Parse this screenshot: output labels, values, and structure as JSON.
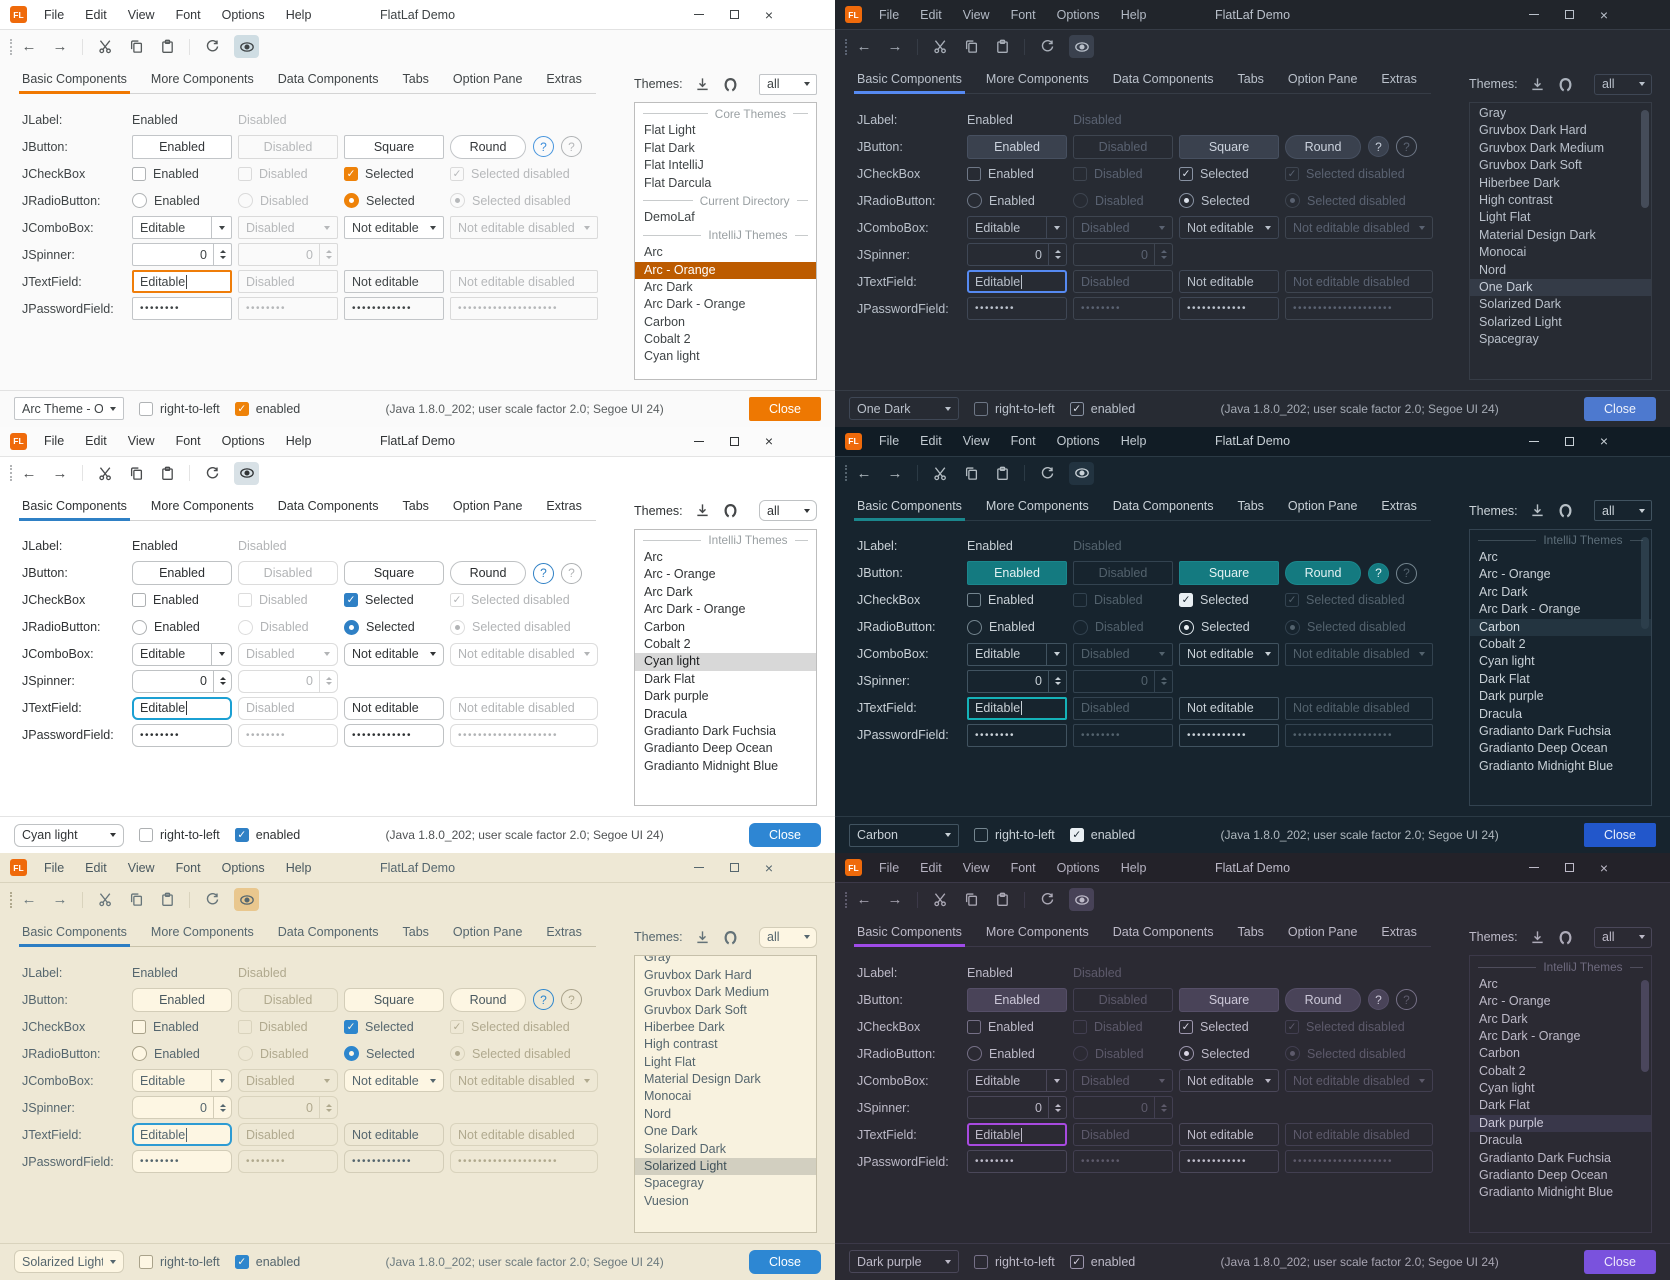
{
  "shared": {
    "titlebar": {
      "menus": [
        "File",
        "Edit",
        "View",
        "Font",
        "Options",
        "Help"
      ],
      "title": "FlatLaf Demo"
    },
    "tabs": [
      "Basic Components",
      "More Components",
      "Data Components",
      "Tabs",
      "Option Pane",
      "Extras"
    ],
    "themes_label": "Themes:",
    "filter_value": "all",
    "form": {
      "rows": [
        "JLabel:",
        "JButton:",
        "JCheckBox",
        "JRadioButton:",
        "JComboBox:",
        "JSpinner:",
        "JTextField:",
        "JPasswordField:"
      ],
      "jlabel": {
        "enabled": "Enabled",
        "disabled": "Disabled"
      },
      "jbutton": {
        "enabled": "Enabled",
        "disabled": "Disabled",
        "square": "Square",
        "round": "Round",
        "help": "?"
      },
      "jcheckbox": {
        "enabled": "Enabled",
        "disabled": "Disabled",
        "selected": "Selected",
        "selected_disabled": "Selected disabled"
      },
      "jradio": {
        "enabled": "Enabled",
        "disabled": "Disabled",
        "selected": "Selected",
        "selected_disabled": "Selected disabled"
      },
      "jcombobox": {
        "editable": "Editable",
        "disabled": "Disabled",
        "not_editable": "Not editable",
        "not_editable_disabled": "Not editable disabled"
      },
      "jspinner": {
        "value": "0"
      },
      "jtextfield": {
        "editable": "Editable",
        "disabled": "Disabled",
        "not_editable": "Not editable",
        "not_editable_disabled": "Not editable disabled"
      },
      "jpassword": {
        "p1": "••••••••",
        "p2": "••••••••",
        "p3": "••••••••••••",
        "p4": "••••••••••••••••••••"
      }
    },
    "bottom": {
      "rtl_label": "right-to-left",
      "enabled_label": "enabled",
      "status": "(Java 1.8.0_202;  user scale factor 2.0; Segoe UI 24)",
      "close_label": "Close"
    }
  },
  "panels": [
    {
      "id": "arc-orange",
      "theme_combo_value": "Arc Theme - O...",
      "scrollbar": false,
      "clip_first": false,
      "list": [
        {
          "sep": "Core Themes"
        },
        {
          "label": "Flat Light"
        },
        {
          "label": "Flat Dark"
        },
        {
          "label": "Flat IntelliJ"
        },
        {
          "label": "Flat Darcula"
        },
        {
          "sep": "Current Directory"
        },
        {
          "label": "DemoLaf"
        },
        {
          "sep": "IntelliJ Themes"
        },
        {
          "label": "Arc"
        },
        {
          "label": "Arc - Orange",
          "selected": true
        },
        {
          "label": "Arc Dark"
        },
        {
          "label": "Arc Dark - Orange"
        },
        {
          "label": "Carbon"
        },
        {
          "label": "Cobalt 2"
        },
        {
          "label": "Cyan light"
        }
      ],
      "colors": {
        "bg": "#fafafa",
        "titlebar": "#ffffff",
        "fg": "#3f4446",
        "menufg": "#333639",
        "muted": "#b6b8ba",
        "line": "#e2e2e2",
        "tabline": "#d4d4d4",
        "ctrl": "#b0b3b5",
        "disctrl": "#dadada",
        "fieldbg": "#ffffff",
        "fieldborder": "#c2c5c8",
        "btnbg": "#ffffff",
        "btnfg": "#333639",
        "btnborder": "#c2c5c8",
        "accent": "#f07800",
        "focus": "#ef7d09",
        "checkbg": "#ee8209",
        "checkborder": "#ee8209",
        "checkfg": "#ffffff",
        "radiobg": "#ee8209",
        "radioborder": "#ee8209",
        "radiodot": "#ffffff",
        "selbg": "#bc5b00",
        "selfg": "#ffffff",
        "listbg": "#ffffff",
        "listborder": "#bdbdbd",
        "sepfg": "#9aa0a3",
        "eyebg": "#cfdde3",
        "closebg": "#ee7802",
        "closefg": "#ffffff",
        "helpbg": "transparent",
        "helpborder": "#4795dd",
        "helpfg": "#3d8edb",
        "thumb": "#d4d4d4",
        "radius": "2px"
      }
    },
    {
      "id": "one-dark",
      "theme_combo_value": "One Dark",
      "scrollbar": true,
      "thumb_top": "2%",
      "thumb_height": "36%",
      "clip_first": false,
      "list": [
        {
          "label": "Gray"
        },
        {
          "label": "Gruvbox Dark Hard"
        },
        {
          "label": "Gruvbox Dark Medium"
        },
        {
          "label": "Gruvbox Dark Soft"
        },
        {
          "label": "Hiberbee Dark"
        },
        {
          "label": "High contrast"
        },
        {
          "label": "Light Flat"
        },
        {
          "label": "Material Design Dark"
        },
        {
          "label": "Monocai"
        },
        {
          "label": "Nord"
        },
        {
          "label": "One Dark",
          "selected": true
        },
        {
          "label": "Solarized Dark"
        },
        {
          "label": "Solarized Light"
        },
        {
          "label": "Spacegray"
        }
      ],
      "colors": {
        "bg": "#272b33",
        "titlebar": "#21252b",
        "fg": "#bac1cb",
        "menufg": "#b3bac5",
        "muted": "#5a6271",
        "line": "#363c46",
        "tabline": "#363c46",
        "ctrl": "#6e7786",
        "disctrl": "#3e4550",
        "fieldbg": "#272b33",
        "fieldborder": "#3f4755",
        "btnbg": "#3a414e",
        "btnfg": "#ccd3de",
        "btnborder": "#475060",
        "accent": "#568af2",
        "focus": "#568af2",
        "checkbg": "transparent",
        "checkborder": "#8892a2",
        "checkfg": "#dbe1ea",
        "radiobg": "transparent",
        "radioborder": "#8892a2",
        "radiodot": "#dbe1ea",
        "selbg": "#343b47",
        "selfg": "#c6cdd8",
        "listbg": "#272b33",
        "listborder": "#363c46",
        "sepfg": "#6a7383",
        "eyebg": "#3a414e",
        "closebg": "#4d79cf",
        "closefg": "#eef2fc",
        "helpbg": "#3a414e",
        "helpborder": "#475060",
        "helpfg": "#c6cdd8",
        "thumb": "#454c59",
        "radius": "3px"
      }
    },
    {
      "id": "cyan-light",
      "theme_combo_value": "Cyan light",
      "scrollbar": false,
      "clip_first": false,
      "list": [
        {
          "sep": "IntelliJ Themes"
        },
        {
          "label": "Arc"
        },
        {
          "label": "Arc - Orange"
        },
        {
          "label": "Arc Dark"
        },
        {
          "label": "Arc Dark - Orange"
        },
        {
          "label": "Carbon"
        },
        {
          "label": "Cobalt 2"
        },
        {
          "label": "Cyan light",
          "selected": true
        },
        {
          "label": "Dark Flat"
        },
        {
          "label": "Dark purple"
        },
        {
          "label": "Dracula"
        },
        {
          "label": "Gradianto Dark Fuchsia"
        },
        {
          "label": "Gradianto Deep Ocean"
        },
        {
          "label": "Gradianto Midnight Blue"
        }
      ],
      "colors": {
        "bg": "#ffffff",
        "titlebar": "#fbfbfb",
        "fg": "#303335",
        "menufg": "#303335",
        "muted": "#b2b4b6",
        "line": "#e4e4e4",
        "tabline": "#d2d2d2",
        "ctrl": "#adb0b2",
        "disctrl": "#dcdcdc",
        "fieldbg": "#ffffff",
        "fieldborder": "#bfc2c4",
        "btnbg": "#ffffff",
        "btnfg": "#2b2e30",
        "btnborder": "#bfc2c4",
        "accent": "#2f80c5",
        "focus": "#1ba0d3",
        "checkbg": "#2f80c5",
        "checkborder": "#2f80c5",
        "checkfg": "#ffffff",
        "radiobg": "#2f80c5",
        "radioborder": "#2f80c5",
        "radiodot": "#ffffff",
        "selbg": "#d8d8d8",
        "selfg": "#1b1d1f",
        "listbg": "#ffffff",
        "listborder": "#bdbdbd",
        "sepfg": "#9aa0a3",
        "eyebg": "#d8e1e6",
        "closebg": "#2e86d3",
        "closefg": "#ffffff",
        "helpbg": "transparent",
        "helpborder": "#2f80c5",
        "helpfg": "#2f80c5",
        "thumb": "#d4d4d4",
        "radius": "6px"
      }
    },
    {
      "id": "carbon",
      "theme_combo_value": "Carbon",
      "scrollbar": true,
      "thumb_top": "2%",
      "thumb_height": "34%",
      "clip_first": false,
      "list": [
        {
          "sep": "IntelliJ Themes"
        },
        {
          "label": "Arc"
        },
        {
          "label": "Arc - Orange"
        },
        {
          "label": "Arc Dark"
        },
        {
          "label": "Arc Dark - Orange"
        },
        {
          "label": "Carbon",
          "selected": true
        },
        {
          "label": "Cobalt 2"
        },
        {
          "label": "Cyan light"
        },
        {
          "label": "Dark Flat"
        },
        {
          "label": "Dark purple"
        },
        {
          "label": "Dracula"
        },
        {
          "label": "Gradianto Dark Fuchsia"
        },
        {
          "label": "Gradianto Deep Ocean"
        },
        {
          "label": "Gradianto Midnight Blue"
        }
      ],
      "colors": {
        "bg": "#17242e",
        "titlebar": "#111c25",
        "fg": "#c9d1d7",
        "menufg": "#c2cad1",
        "muted": "#53626d",
        "line": "#2b3a45",
        "tabline": "#2b3a45",
        "ctrl": "#74858f",
        "disctrl": "#334350",
        "fieldbg": "#17242e",
        "fieldborder": "#415360",
        "btnbg": "#147a80",
        "btnfg": "#e2f1f2",
        "btnborder": "#1b878d",
        "accent": "#1b878d",
        "focus": "#15b2b8",
        "checkbg": "#e9eff3",
        "checkborder": "#e9eff3",
        "checkfg": "#17242e",
        "radiobg": "transparent",
        "radioborder": "#dfe7ec",
        "radiodot": "#e9eff3",
        "selbg": "#233440",
        "selfg": "#d3dce2",
        "listbg": "#17242e",
        "listborder": "#334350",
        "sepfg": "#5d6e79",
        "eyebg": "#223340",
        "closebg": "#2257cb",
        "closefg": "#e9effc",
        "helpbg": "#147a80",
        "helpborder": "#1b878d",
        "helpfg": "#e2f1f2",
        "thumb": "#2c3e4b",
        "radius": "2px"
      }
    },
    {
      "id": "solarized-light",
      "theme_combo_value": "Solarized Light",
      "scrollbar": false,
      "clip_first": true,
      "list": [
        {
          "label": "Gray"
        },
        {
          "label": "Gruvbox Dark Hard"
        },
        {
          "label": "Gruvbox Dark Medium"
        },
        {
          "label": "Gruvbox Dark Soft"
        },
        {
          "label": "Hiberbee Dark"
        },
        {
          "label": "High contrast"
        },
        {
          "label": "Light Flat"
        },
        {
          "label": "Material Design Dark"
        },
        {
          "label": "Monocai"
        },
        {
          "label": "Nord"
        },
        {
          "label": "One Dark"
        },
        {
          "label": "Solarized Dark"
        },
        {
          "label": "Solarized Light",
          "selected": true
        },
        {
          "label": "Spacegray"
        },
        {
          "label": "Vuesion"
        }
      ],
      "colors": {
        "bg": "#eee8d5",
        "titlebar": "#eee8d5",
        "fg": "#55666e",
        "menufg": "#49585f",
        "muted": "#b0a98e",
        "line": "#d9d3bd",
        "tabline": "#c9c3ac",
        "ctrl": "#a9a28a",
        "disctrl": "#d9d3bd",
        "fieldbg": "#fdf6e3",
        "fieldborder": "#d3cdb8",
        "btnbg": "#fdf6e3",
        "btnfg": "#49585f",
        "btnborder": "#d3cdb8",
        "accent": "#2d7ec3",
        "focus": "#2d9bd3",
        "checkbg": "#2d86cd",
        "checkborder": "#2d86cd",
        "checkfg": "#fdf6e3",
        "radiobg": "#2d86cd",
        "radioborder": "#2d86cd",
        "radiodot": "#fdf6e3",
        "selbg": "#d2cfc0",
        "selfg": "#40525a",
        "listbg": "#f8f2df",
        "listborder": "#c6c0aa",
        "sepfg": "#a29b82",
        "eyebg": "#e9c78e",
        "closebg": "#2d87d3",
        "closefg": "#ffffff",
        "helpbg": "transparent",
        "helpborder": "#2d86cd",
        "helpfg": "#2d86cd",
        "thumb": "#d0cab5",
        "radius": "6px"
      }
    },
    {
      "id": "dark-purple",
      "theme_combo_value": "Dark purple",
      "scrollbar": true,
      "thumb_top": "8%",
      "thumb_height": "34%",
      "clip_first": false,
      "list": [
        {
          "sep": "IntelliJ Themes"
        },
        {
          "label": "Arc"
        },
        {
          "label": "Arc - Orange"
        },
        {
          "label": "Arc Dark"
        },
        {
          "label": "Arc Dark - Orange"
        },
        {
          "label": "Carbon"
        },
        {
          "label": "Cobalt 2"
        },
        {
          "label": "Cyan light"
        },
        {
          "label": "Dark Flat"
        },
        {
          "label": "Dark purple",
          "selected": true
        },
        {
          "label": "Dracula"
        },
        {
          "label": "Gradianto Dark Fuchsia"
        },
        {
          "label": "Gradianto Deep Ocean"
        },
        {
          "label": "Gradianto Midnight Blue"
        }
      ],
      "colors": {
        "bg": "#2b2a33",
        "titlebar": "#232229",
        "fg": "#bdbac8",
        "menufg": "#b5b2c1",
        "muted": "#5d5a6b",
        "line": "#3c3949",
        "tabline": "#3c3949",
        "ctrl": "#767087",
        "disctrl": "#423f51",
        "fieldbg": "#2b2a33",
        "fieldborder": "#4a4759",
        "btnbg": "#494358",
        "btnfg": "#cbc7d7",
        "btnborder": "#564f68",
        "accent": "#9f4be8",
        "focus": "#a84ae0",
        "checkbg": "transparent",
        "checkborder": "#9b95ac",
        "checkfg": "#d9d5e3",
        "radiobg": "transparent",
        "radioborder": "#9b95ac",
        "radiodot": "#d9d5e3",
        "selbg": "#39374a",
        "selfg": "#cbc8d8",
        "listbg": "#2b2a33",
        "listborder": "#3c3949",
        "sepfg": "#6e6a7e",
        "eyebg": "#474257",
        "closebg": "#7a52dd",
        "closefg": "#eeeafc",
        "helpbg": "#494358",
        "helpborder": "#564f68",
        "helpfg": "#cbc7d7",
        "thumb": "#4a465c",
        "radius": "3px"
      }
    }
  ]
}
